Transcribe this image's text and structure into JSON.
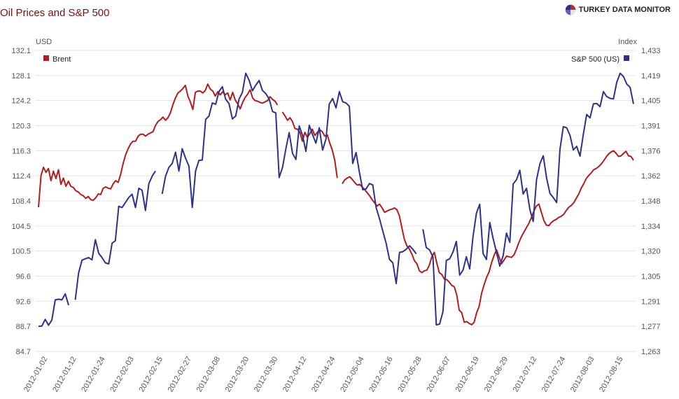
{
  "header": {
    "title": "Oil Prices and S&P 500",
    "brand": "TURKEY DATA MONITOR",
    "brand_icon": "pie-globe-icon"
  },
  "colors": {
    "brent": "#b41c1c",
    "sp500": "#2c318a",
    "grid": "#e4e4e4",
    "title": "#7a1010"
  },
  "chart_data": {
    "type": "line",
    "left_axis_label": "USD",
    "right_axis_label": "Index",
    "left_ticks": [
      "84.7",
      "88.7",
      "92.6",
      "96.6",
      "100.5",
      "104.5",
      "108.4",
      "112.4",
      "116.3",
      "120.3",
      "124.2",
      "128.1",
      "132.1"
    ],
    "right_ticks": [
      "1,263",
      "1,277",
      "1,291",
      "1,305",
      "1,320",
      "1,334",
      "1,348",
      "1,362",
      "1,376",
      "1,391",
      "1,405",
      "1,419",
      "1,433"
    ],
    "left_ylim": [
      84.7,
      132.1
    ],
    "right_ylim": [
      1263,
      1433
    ],
    "x_labels": [
      "2012-01-02",
      "2012-01-12",
      "2012-01-24",
      "2012-02-03",
      "2012-02-15",
      "2012-02-27",
      "2012-03-08",
      "2012-03-20",
      "2012-03-30",
      "2012-04-12",
      "2012-04-24",
      "2012-05-04",
      "2012-05-16",
      "2012-05-28",
      "2012-06-07",
      "2012-06-19",
      "2012-06-29",
      "2012-07-12",
      "2012-07-24",
      "2012-08-03",
      "2012-08-15"
    ],
    "legend": {
      "left": "Brent",
      "right": "S&P 500 (US)"
    },
    "grid": true,
    "series": [
      {
        "name": "Brent",
        "axis": "left",
        "values": [
          107.4,
          112.4,
          113.7,
          112.9,
          113.5,
          111.6,
          113.1,
          111.9,
          113.3,
          111.0,
          112.0,
          110.7,
          111.5,
          110.7,
          110.5,
          110.0,
          109.8,
          109.4,
          109.2,
          108.8,
          109.1,
          108.6,
          108.5,
          108.9,
          109.5,
          109.4,
          110.4,
          110.6,
          110.4,
          110.3,
          111.1,
          111.6,
          111.3,
          112.6,
          114.3,
          115.7,
          116.6,
          117.4,
          117.8,
          117.8,
          118.6,
          118.9,
          118.9,
          118.6,
          118.9,
          119.1,
          119.3,
          120.3,
          120.9,
          121.2,
          121.6,
          121.1,
          121.5,
          122.3,
          123.6,
          124.6,
          125.4,
          125.7,
          126.1,
          126.6,
          124.9,
          124.0,
          122.8,
          125.5,
          125.7,
          125.7,
          125.4,
          125.8,
          126.8,
          126.0,
          125.7,
          124.9,
          125.6,
          125.1,
          125.6,
          125.1,
          125.4,
          124.3,
          125.5,
          124.3,
          123.7,
          122.9,
          123.9,
          124.7,
          125.2,
          125.9,
          124.6,
          124.2,
          124.1,
          123.9,
          123.8,
          124.0,
          124.2,
          124.8,
          124.4,
          124.1,
          123.5,
          null,
          122.4,
          121.8,
          121.1,
          121.5,
          120.9,
          119.8,
          119.7,
          119.2,
          117.8,
          119.2,
          118.4,
          119.0,
          119.7,
          118.7,
          119.2,
          119.6,
          119.3,
          118.6,
          118.8,
          117.5,
          116.4,
          114.8,
          112.0,
          null,
          111.1,
          111.7,
          112.0,
          112.2,
          111.8,
          111.3,
          110.9,
          111.0,
          110.6,
          110.2,
          109.7,
          109.2,
          108.6,
          108.1,
          107.6,
          107.9,
          107.3,
          106.6,
          106.8,
          107.0,
          107.1,
          107.3,
          107.0,
          106.0,
          104.1,
          102.3,
          101.3,
          100.8,
          100.0,
          99.0,
          98.5,
          97.4,
          97.1,
          97.4,
          97.5,
          98.3,
          99.6,
          100.3,
          98.6,
          97.1,
          96.8,
          96.1,
          96.0,
          95.6,
          95.1,
          94.9,
          93.6,
          91.2,
          90.8,
          89.3,
          89.4,
          89.1,
          88.9,
          89.3,
          90.8,
          91.8,
          93.9,
          95.2,
          96.4,
          97.2,
          98.7,
          99.8,
          100.7,
          99.6,
          98.5,
          99.1,
          99.7,
          99.6,
          99.5,
          99.9,
          100.8,
          101.9,
          102.8,
          103.5,
          104.2,
          104.9,
          105.8,
          106.8,
          107.6,
          107.9,
          106.6,
          105.3,
          104.6,
          104.5,
          105.0,
          105.3,
          105.5,
          105.8,
          106.0,
          106.3,
          106.9,
          107.4,
          107.7,
          108.1,
          108.8,
          109.5,
          110.4,
          111.1,
          111.9,
          112.4,
          112.8,
          113.3,
          113.5,
          113.8,
          114.2,
          114.7,
          115.3,
          115.8,
          116.1,
          116.3,
          115.9,
          115.4,
          115.5,
          115.9,
          116.2,
          115.5,
          115.4,
          114.8
        ]
      },
      {
        "name": "S&P 500 (US)",
        "axis": "right",
        "values": [
          1277.1,
          1277.3,
          1281.1,
          1277.8,
          1280.7,
          1292.1,
          1292.5,
          1292.1,
          1295.5,
          1289.1,
          null,
          1292.1,
          1307.3,
          1314.5,
          1315.3,
          1316.0,
          1314.7,
          1326.1,
          1318.4,
          1316.0,
          1313.0,
          1312.4,
          1324.1,
          1325.5,
          1344.9,
          1344.3,
          1347.1,
          1349.9,
          1351.8,
          1344.3,
          1355.1,
          1354.0,
          1342.6,
          1357.7,
          1362.0,
          1364.9,
          null,
          1351.9,
          1362.0,
          1366.9,
          1369.1,
          1375.5,
          1364.9,
          1377.5,
          1372.1,
          1367.6,
          1344.3,
          1364.9,
          1370.9,
          1371.1,
          1394.0,
          1395.9,
          1403.3,
          1402.6,
          1409.8,
          1412.5,
          1405.5,
          1402.9,
          1394.3,
          1395.9,
          1405.5,
          1409.3,
          1420.1,
          1416.2,
          1410.2,
          1413.4,
          1416.0,
          1410.4,
          1408.6,
          1405.6,
          1398.5,
          1397.7,
          1361.2,
          1366.9,
          1377.5,
          1386.6,
          1374.8,
          1371.4,
          1390.3,
          1385.0,
          1376.0,
          1390.7,
          1385.3,
          1380.6,
          1389.3,
          1376.7,
          1383.0,
          1402.7,
          1405.8,
          1400.5,
          1409.7,
          1404.0,
          1403.3,
          1401.4,
          1369.1,
          1375.3,
          1364.3,
          1354.3,
          1354.8,
          1357.8,
          1357.0,
          1344.3,
          1338.0,
          1330.9,
          1324.1,
          1315.0,
          1313.0,
          1301.3,
          1318.9,
          1319.3,
          1320.7,
          1322.6,
          1320.7,
          1318.1,
          null,
          1332.0,
          1321.7,
          1320.3,
          1316.4,
          1278.0,
          1278.4,
          1285.5,
          1314.4,
          1315.3,
          1319.1,
          1325.1,
          1306.1,
          1308.9,
          1316.4,
          1309.6,
          1328.0,
          1341.1,
          1346.1,
          1318.3,
          1314.9,
          1335.8,
          1326.9,
          1319.0,
          1311.2,
          1317.1,
          1329.8,
          1324.6,
          1357.6,
          1360.0,
          1365.3,
          1351.9,
          1355.1,
          1343.0,
          1336.4,
          1360.0,
          1369.0,
          1373.5,
          1361.0,
          1352.3,
          1349.9,
          1347.0,
          1376.9,
          1389.9,
          1389.3,
          1385.0,
          1376.8,
          1378.8,
          1373.3,
          1385.8,
          1396.8,
          1394.9,
          1402.8,
          1403.0,
          1401.2,
          1409.7,
          1406.9,
          1405.9,
          1405.6,
          1415.0,
          1420.1,
          1418.2,
          1414.0,
          1412.1,
          1402.8
        ]
      }
    ]
  }
}
